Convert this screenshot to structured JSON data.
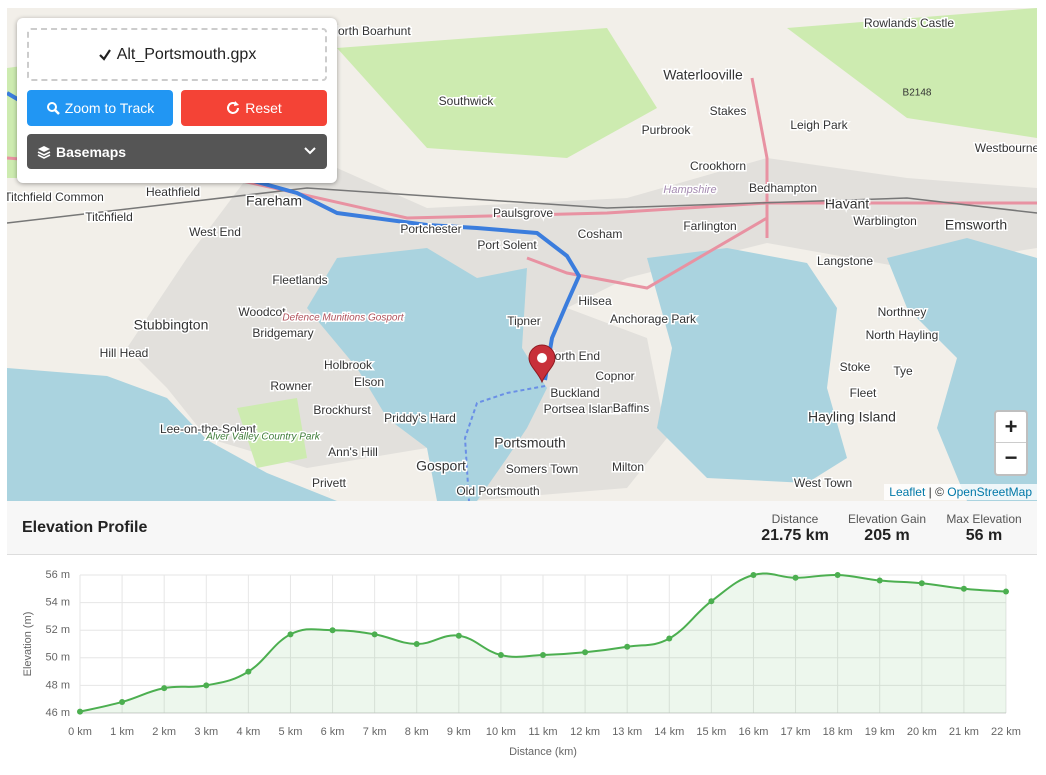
{
  "panel": {
    "file": "Alt_Portsmouth.gpx",
    "zoom_button": "Zoom to Track",
    "reset_button": "Reset",
    "basemaps": "Basemaps"
  },
  "map": {
    "places": [
      "Rowlands Castle",
      "Waterlooville",
      "Southwick",
      "Purbrook",
      "Stakes",
      "Leigh Park",
      "Westbourne",
      "Crookhorn",
      "Bedhampton",
      "Havant",
      "Emsworth",
      "Warblington",
      "Heathfield",
      "Titchfield Common",
      "Titchfield",
      "Fareham",
      "West End",
      "Portchester",
      "Paulsgrove",
      "Port Solent",
      "Cosham",
      "Farlington",
      "Langstone",
      "Fleetlands",
      "Hilsea",
      "Northney",
      "Anchorage Park",
      "Stubbington",
      "Woodcot",
      "Bridgemary",
      "Tipner",
      "North Hayling",
      "Hill Head",
      "North End",
      "Holbrook",
      "Copnor",
      "Stoke",
      "Tye",
      "Elson",
      "Rowner",
      "Buckland",
      "Portsea Island",
      "Baffins",
      "Fleet",
      "Brockhurst",
      "Priddy's Hard",
      "Hayling Island",
      "Lee-on-the-Solent",
      "Portsmouth",
      "Ann's Hill",
      "Gosport",
      "Somers Town",
      "Milton",
      "Privett",
      "West Town",
      "Old Portsmouth",
      "North Boarhunt",
      "Hampshire",
      "Defence Munitions Gosport",
      "Alver Valley Country Park",
      "B2148"
    ],
    "zoom_in": "+",
    "zoom_out": "−",
    "attribution": [
      "Leaflet",
      "| ©",
      "OpenStreetMap"
    ]
  },
  "profile": {
    "title": "Elevation Profile",
    "stats": [
      {
        "label": "Distance",
        "value": "21.75 km"
      },
      {
        "label": "Elevation Gain",
        "value": "205 m"
      },
      {
        "label": "Max Elevation",
        "value": "56 m"
      }
    ]
  },
  "chart_data": {
    "type": "line",
    "x_label": "Distance (km)",
    "y_label": "Elevation (m)",
    "color": "#4caf50",
    "x": [
      0,
      1,
      2,
      3,
      4,
      5,
      6,
      7,
      8,
      9,
      10,
      11,
      12,
      13,
      14,
      15,
      16,
      17,
      18,
      19,
      20,
      21,
      22
    ],
    "values": [
      46.1,
      46.8,
      47.8,
      48.0,
      49.0,
      51.7,
      52.0,
      51.7,
      51.0,
      51.6,
      50.2,
      50.2,
      50.4,
      50.8,
      51.4,
      54.1,
      56.0,
      55.8,
      56.0,
      55.6,
      55.4,
      55.0,
      54.8
    ],
    "xlim": [
      0,
      22
    ],
    "ylim": [
      46,
      56
    ],
    "xticks": [
      {
        "value": 0,
        "label": "0 km"
      },
      {
        "value": 1,
        "label": "1 km"
      },
      {
        "value": 2,
        "label": "2 km"
      },
      {
        "value": 3,
        "label": "3 km"
      },
      {
        "value": 4,
        "label": "4 km"
      },
      {
        "value": 5,
        "label": "5 km"
      },
      {
        "value": 6,
        "label": "6 km"
      },
      {
        "value": 7,
        "label": "7 km"
      },
      {
        "value": 8,
        "label": "8 km"
      },
      {
        "value": 9,
        "label": "9 km"
      },
      {
        "value": 10,
        "label": "10 km"
      },
      {
        "value": 11,
        "label": "11 km"
      },
      {
        "value": 12,
        "label": "12 km"
      },
      {
        "value": 13,
        "label": "13 km"
      },
      {
        "value": 14,
        "label": "14 km"
      },
      {
        "value": 15,
        "label": "15 km"
      },
      {
        "value": 16,
        "label": "16 km"
      },
      {
        "value": 17,
        "label": "17 km"
      },
      {
        "value": 18,
        "label": "18 km"
      },
      {
        "value": 19,
        "label": "19 km"
      },
      {
        "value": 20,
        "label": "20 km"
      },
      {
        "value": 21,
        "label": "21 km"
      },
      {
        "value": 22,
        "label": "22 km"
      }
    ],
    "yticks": [
      {
        "value": 46,
        "label": "46 m"
      },
      {
        "value": 48,
        "label": "48 m"
      },
      {
        "value": 50,
        "label": "50 m"
      },
      {
        "value": 52,
        "label": "52 m"
      },
      {
        "value": 54,
        "label": "54 m"
      },
      {
        "value": 56,
        "label": "56 m"
      }
    ],
    "grid": true
  }
}
